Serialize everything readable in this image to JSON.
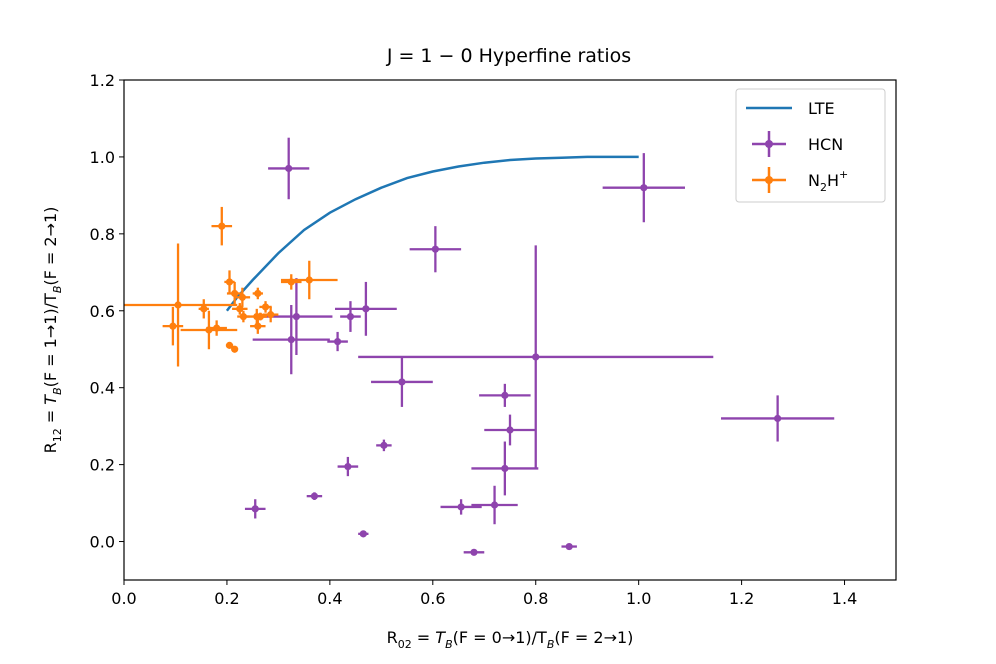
{
  "chart_data": {
    "type": "scatter",
    "title": "J = 1 − 0 Hyperfine ratios",
    "xlabel": {
      "main": "R",
      "sub": "02",
      "rest": " = T",
      "sub2": "B",
      "rest2": "(F = 0→1)/T",
      "sub3": "B",
      "rest3": "(F = 2→1)"
    },
    "ylabel": {
      "main": "R",
      "sub": "12",
      "rest": " = T",
      "sub2": "B",
      "rest2": "(F = 1→1)/T",
      "sub3": "B",
      "rest3": "(F = 2→1)"
    },
    "xlim": [
      0.0,
      1.5
    ],
    "ylim": [
      -0.1,
      1.2
    ],
    "xticks": [
      0.0,
      0.2,
      0.4,
      0.6,
      0.8,
      1.0,
      1.2,
      1.4
    ],
    "xtick_labels": [
      "0.0",
      "0.2",
      "0.4",
      "0.6",
      "0.8",
      "1.0",
      "1.2",
      "1.4"
    ],
    "yticks": [
      0.0,
      0.2,
      0.4,
      0.6,
      0.8,
      1.0,
      1.2
    ],
    "ytick_labels": [
      "0.0",
      "0.2",
      "0.4",
      "0.6",
      "0.8",
      "1.0",
      "1.2"
    ],
    "legend": {
      "position": "top-right",
      "entries": [
        {
          "label": "LTE",
          "kind": "line",
          "color": "#1f77b4"
        },
        {
          "label": "HCN",
          "kind": "errorbar",
          "color": "#8e44ad"
        },
        {
          "label": "N",
          "sub": "2",
          "mid": "H",
          "sup": "+",
          "kind": "errorbar",
          "color": "#ff7f0e"
        }
      ]
    },
    "series": [
      {
        "name": "LTE",
        "type": "line",
        "color": "#1f77b4",
        "x": [
          0.2,
          0.22,
          0.25,
          0.3,
          0.35,
          0.4,
          0.45,
          0.5,
          0.55,
          0.6,
          0.65,
          0.7,
          0.75,
          0.8,
          0.85,
          0.9,
          0.95,
          1.0
        ],
        "y": [
          0.6,
          0.635,
          0.68,
          0.75,
          0.81,
          0.855,
          0.89,
          0.92,
          0.945,
          0.962,
          0.975,
          0.985,
          0.992,
          0.996,
          0.998,
          1.0,
          1.0,
          1.0
        ]
      },
      {
        "name": "HCN",
        "type": "errorbar",
        "color": "#8e44ad",
        "points": [
          {
            "x": 0.32,
            "y": 0.97,
            "xerr": 0.04,
            "yerr": 0.08
          },
          {
            "x": 1.01,
            "y": 0.92,
            "xerr": 0.08,
            "yerr": 0.09
          },
          {
            "x": 0.605,
            "y": 0.76,
            "xerr": 0.05,
            "yerr": 0.06
          },
          {
            "x": 0.47,
            "y": 0.605,
            "xerr": 0.06,
            "yerr": 0.07
          },
          {
            "x": 0.44,
            "y": 0.585,
            "xerr": 0.02,
            "yerr": 0.04
          },
          {
            "x": 0.335,
            "y": 0.585,
            "xerr": 0.07,
            "yerr": 0.1
          },
          {
            "x": 0.325,
            "y": 0.525,
            "xerr": 0.075,
            "yerr": 0.09
          },
          {
            "x": 0.415,
            "y": 0.52,
            "xerr": 0.02,
            "yerr": 0.025
          },
          {
            "x": 0.8,
            "y": 0.48,
            "xerr": 0.345,
            "yerr": 0.29
          },
          {
            "x": 0.54,
            "y": 0.415,
            "xerr": 0.06,
            "yerr": 0.065
          },
          {
            "x": 0.74,
            "y": 0.38,
            "xerr": 0.05,
            "yerr": 0.03
          },
          {
            "x": 0.75,
            "y": 0.29,
            "xerr": 0.05,
            "yerr": 0.04
          },
          {
            "x": 1.27,
            "y": 0.32,
            "xerr": 0.11,
            "yerr": 0.06
          },
          {
            "x": 0.505,
            "y": 0.25,
            "xerr": 0.015,
            "yerr": 0.015
          },
          {
            "x": 0.435,
            "y": 0.195,
            "xerr": 0.02,
            "yerr": 0.025
          },
          {
            "x": 0.74,
            "y": 0.19,
            "xerr": 0.065,
            "yerr": 0.07
          },
          {
            "x": 0.37,
            "y": 0.118,
            "xerr": 0.015,
            "yerr": 0.01
          },
          {
            "x": 0.655,
            "y": 0.09,
            "xerr": 0.04,
            "yerr": 0.02
          },
          {
            "x": 0.72,
            "y": 0.095,
            "xerr": 0.045,
            "yerr": 0.05
          },
          {
            "x": 0.255,
            "y": 0.085,
            "xerr": 0.02,
            "yerr": 0.025
          },
          {
            "x": 0.465,
            "y": 0.02,
            "xerr": 0.01,
            "yerr": 0.008
          },
          {
            "x": 0.68,
            "y": -0.028,
            "xerr": 0.02,
            "yerr": 0.008
          },
          {
            "x": 0.865,
            "y": -0.013,
            "xerr": 0.015,
            "yerr": 0.006
          }
        ]
      },
      {
        "name": "N2H+",
        "type": "errorbar",
        "color": "#ff7f0e",
        "points": [
          {
            "x": 0.19,
            "y": 0.82,
            "xerr": 0.02,
            "yerr": 0.05
          },
          {
            "x": 0.105,
            "y": 0.615,
            "xerr": 0.115,
            "yerr": 0.16
          },
          {
            "x": 0.095,
            "y": 0.56,
            "xerr": 0.02,
            "yerr": 0.05
          },
          {
            "x": 0.155,
            "y": 0.605,
            "xerr": 0.01,
            "yerr": 0.025
          },
          {
            "x": 0.165,
            "y": 0.55,
            "xerr": 0.055,
            "yerr": 0.05
          },
          {
            "x": 0.18,
            "y": 0.555,
            "xerr": 0.02,
            "yerr": 0.02
          },
          {
            "x": 0.205,
            "y": 0.675,
            "xerr": 0.01,
            "yerr": 0.03
          },
          {
            "x": 0.215,
            "y": 0.645,
            "xerr": 0.015,
            "yerr": 0.03
          },
          {
            "x": 0.23,
            "y": 0.635,
            "xerr": 0.015,
            "yerr": 0.025
          },
          {
            "x": 0.225,
            "y": 0.605,
            "xerr": 0.015,
            "yerr": 0.015
          },
          {
            "x": 0.232,
            "y": 0.585,
            "xerr": 0.012,
            "yerr": 0.015
          },
          {
            "x": 0.26,
            "y": 0.645,
            "xerr": 0.01,
            "yerr": 0.015
          },
          {
            "x": 0.258,
            "y": 0.585,
            "xerr": 0.02,
            "yerr": 0.02
          },
          {
            "x": 0.26,
            "y": 0.56,
            "xerr": 0.015,
            "yerr": 0.02
          },
          {
            "x": 0.275,
            "y": 0.61,
            "xerr": 0.012,
            "yerr": 0.015
          },
          {
            "x": 0.285,
            "y": 0.59,
            "xerr": 0.015,
            "yerr": 0.02
          },
          {
            "x": 0.265,
            "y": 0.585,
            "xerr": 0.01,
            "yerr": 0.01
          },
          {
            "x": 0.325,
            "y": 0.675,
            "xerr": 0.02,
            "yerr": 0.02
          },
          {
            "x": 0.36,
            "y": 0.68,
            "xerr": 0.055,
            "yerr": 0.05
          },
          {
            "x": 0.205,
            "y": 0.51,
            "xerr": 0.007,
            "yerr": 0.008
          },
          {
            "x": 0.215,
            "y": 0.5,
            "xerr": 0.005,
            "yerr": 0.005
          }
        ]
      }
    ]
  }
}
